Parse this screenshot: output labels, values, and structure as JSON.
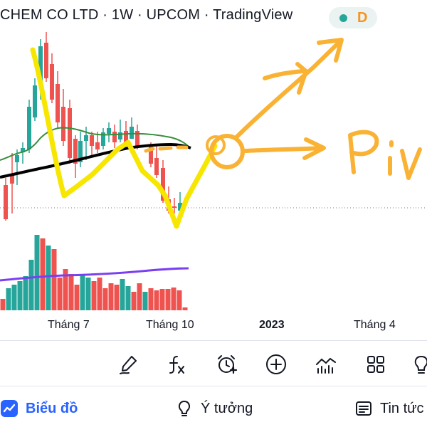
{
  "header": {
    "title": "CHEM CO LTD · 1W · UPCOM · TradingView",
    "status_letter": "D"
  },
  "time_axis": [
    "Tháng 7",
    "Tháng 10",
    "2023",
    "Tháng 4"
  ],
  "toolbar": {
    "icons": [
      "draw-brush-icon",
      "function-fx-icon",
      "alert-clock-icon",
      "add-circle-icon",
      "indicators-icon",
      "layout-grid-icon",
      "lightbulb-icon"
    ]
  },
  "bottom_nav": {
    "chart_label": "Biểu đồ",
    "ideas_label": "Ý tưởng",
    "news_label": "Tin tức"
  },
  "annotation": {
    "handwritten_text": "Piv"
  },
  "colors": {
    "up": "#26a69a",
    "down": "#ef5350",
    "annotation_yellow": "#f6e600",
    "annotation_orange": "#f9b233",
    "active_blue": "#2962ff",
    "ma_green": "#388e3c",
    "volume_ma": "#7b3ff2"
  }
}
